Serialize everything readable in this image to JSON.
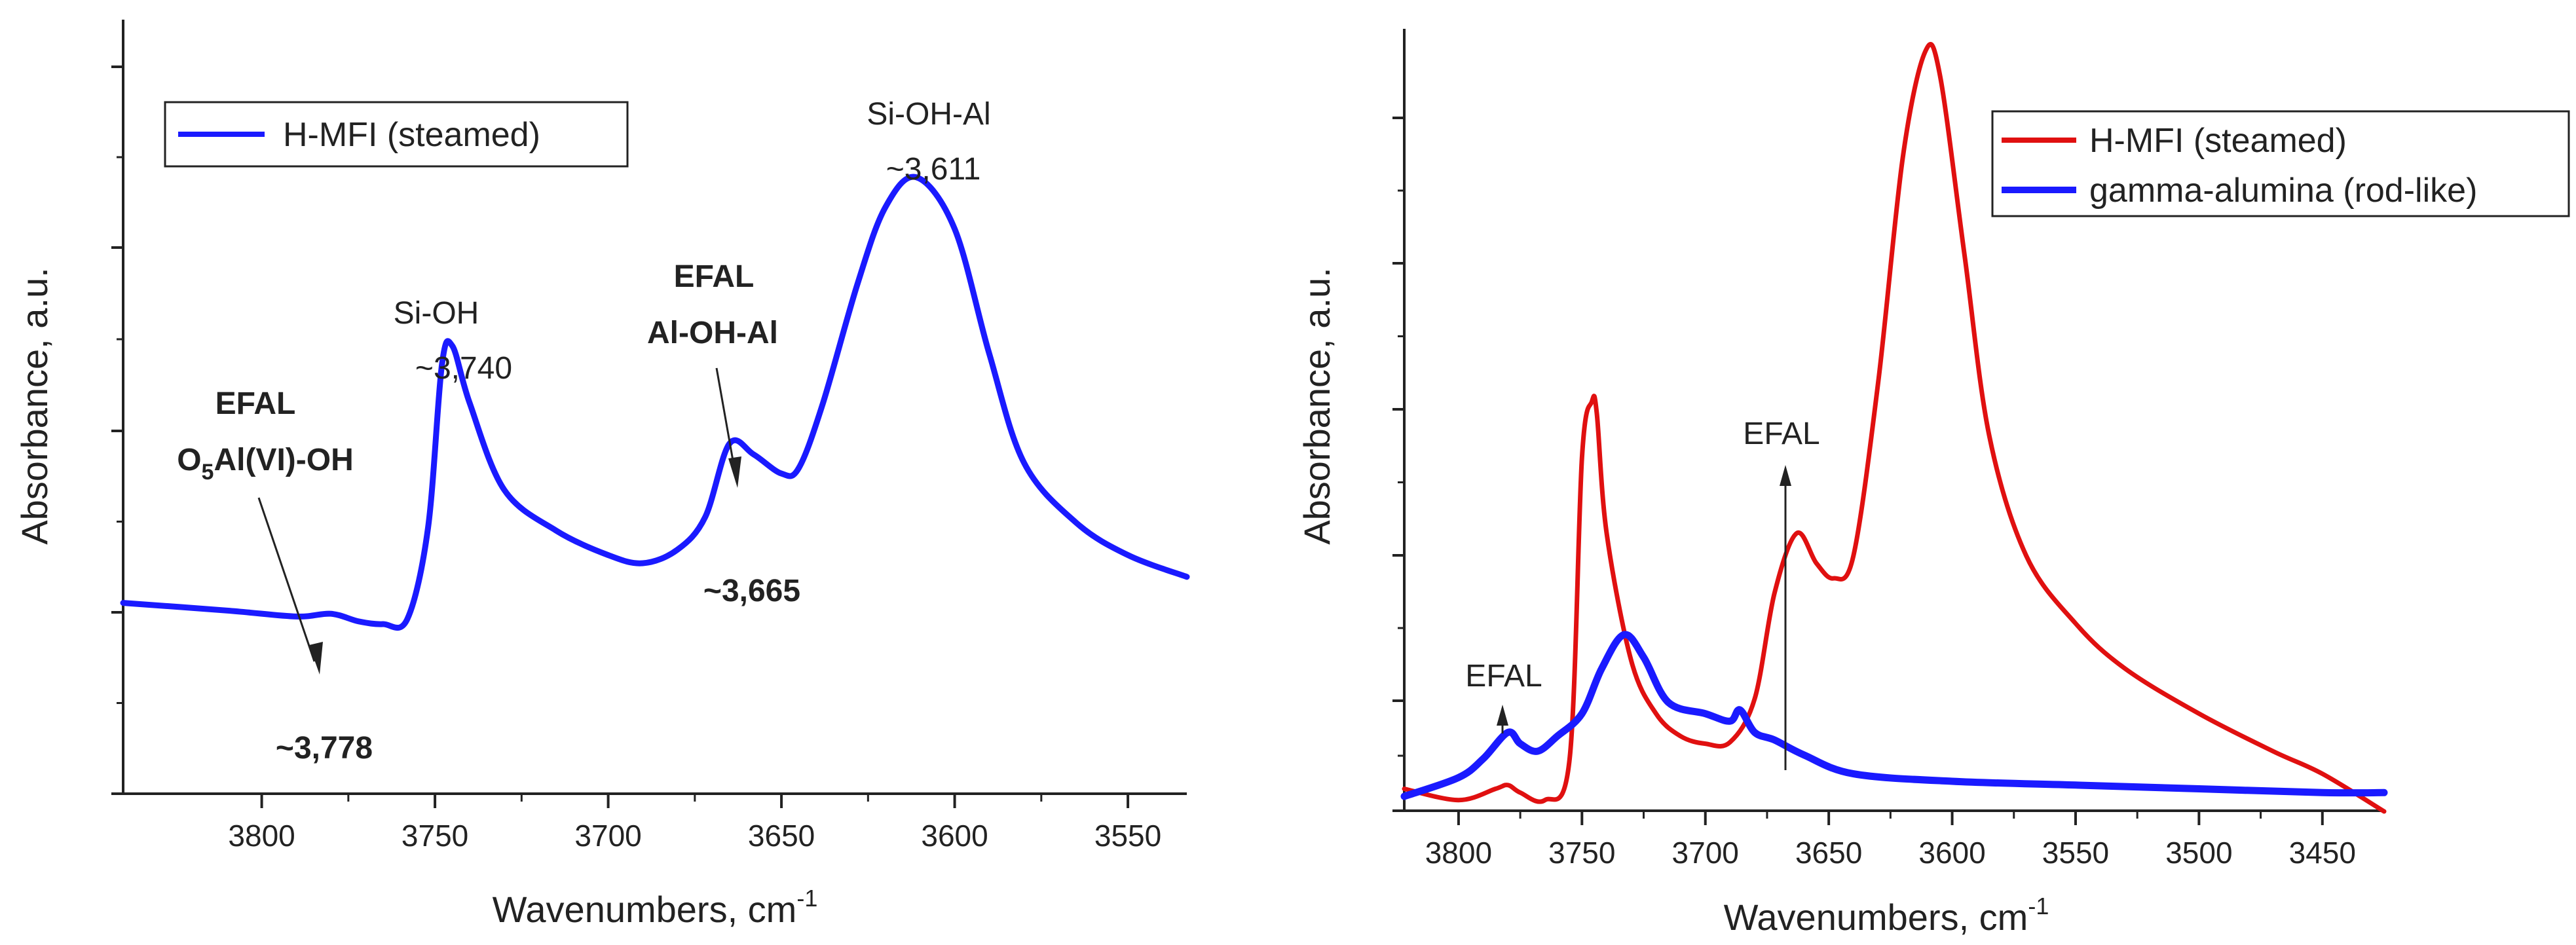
{
  "chart_data": [
    {
      "type": "line",
      "xlabel": "Wavenumbers, cm",
      "xlabel_superscript": "-1",
      "ylabel": "Absorbance, a.u.",
      "xlim": [
        3840,
        3533
      ],
      "ylim": [
        0,
        1
      ],
      "x_ticks": [
        3800,
        3750,
        3700,
        3650,
        3600,
        3550
      ],
      "legend": "top-left",
      "series": [
        {
          "name": "H-MFI (steamed)",
          "color": "#1a1aff",
          "points": [
            [
              3840,
              0.192
            ],
            [
              3810,
              0.178
            ],
            [
              3790,
              0.167
            ],
            [
              3780,
              0.172
            ],
            [
              3772,
              0.158
            ],
            [
              3765,
              0.153
            ],
            [
              3758,
              0.162
            ],
            [
              3752,
              0.33
            ],
            [
              3748,
              0.63
            ],
            [
              3745,
              0.665
            ],
            [
              3740,
              0.56
            ],
            [
              3730,
              0.4
            ],
            [
              3715,
              0.325
            ],
            [
              3700,
              0.28
            ],
            [
              3690,
              0.265
            ],
            [
              3680,
              0.29
            ],
            [
              3672,
              0.35
            ],
            [
              3665,
              0.485
            ],
            [
              3658,
              0.465
            ],
            [
              3650,
              0.43
            ],
            [
              3645,
              0.44
            ],
            [
              3638,
              0.56
            ],
            [
              3628,
              0.78
            ],
            [
              3620,
              0.92
            ],
            [
              3611,
              0.975
            ],
            [
              3600,
              0.88
            ],
            [
              3590,
              0.65
            ],
            [
              3580,
              0.45
            ],
            [
              3565,
              0.34
            ],
            [
              3550,
              0.28
            ],
            [
              3533,
              0.24
            ]
          ]
        }
      ],
      "annotations": [
        {
          "lines": [
            "EFAL",
            "O5Al(VI)-OH"
          ],
          "bold": true
        },
        {
          "lines": [
            "~3,778"
          ],
          "bold": true
        },
        {
          "lines": [
            "Si-OH",
            "~3,740"
          ],
          "bold": false
        },
        {
          "lines": [
            "EFAL",
            "Al-OH-Al"
          ],
          "bold": true
        },
        {
          "lines": [
            "~3,665"
          ],
          "bold": true
        },
        {
          "lines": [
            "Si-OH-Al",
            "~3,611"
          ],
          "bold": false
        }
      ]
    },
    {
      "type": "line",
      "xlabel": "Wavenumbers, cm",
      "xlabel_superscript": "-1",
      "ylabel": "Absorbance, a.u.",
      "xlim": [
        3822,
        3425
      ],
      "ylim": [
        0,
        1
      ],
      "x_ticks": [
        3800,
        3750,
        3700,
        3650,
        3600,
        3550,
        3500,
        3450
      ],
      "legend": "top-right",
      "series": [
        {
          "name": "H-MFI (steamed)",
          "color": "#e01010",
          "points": [
            [
              3822,
              0.01
            ],
            [
              3800,
              -0.005
            ],
            [
              3785,
              0.01
            ],
            [
              3780,
              0.015
            ],
            [
              3775,
              0.005
            ],
            [
              3765,
              -0.005
            ],
            [
              3755,
              0.05
            ],
            [
              3750,
              0.45
            ],
            [
              3746,
              0.525
            ],
            [
              3744,
              0.51
            ],
            [
              3740,
              0.35
            ],
            [
              3730,
              0.18
            ],
            [
              3720,
              0.11
            ],
            [
              3710,
              0.08
            ],
            [
              3700,
              0.07
            ],
            [
              3690,
              0.072
            ],
            [
              3680,
              0.13
            ],
            [
              3672,
              0.27
            ],
            [
              3663,
              0.35
            ],
            [
              3655,
              0.31
            ],
            [
              3648,
              0.29
            ],
            [
              3640,
              0.32
            ],
            [
              3630,
              0.55
            ],
            [
              3620,
              0.85
            ],
            [
              3611,
              0.99
            ],
            [
              3605,
              0.96
            ],
            [
              3595,
              0.72
            ],
            [
              3585,
              0.48
            ],
            [
              3570,
              0.32
            ],
            [
              3550,
              0.23
            ],
            [
              3530,
              0.17
            ],
            [
              3500,
              0.11
            ],
            [
              3470,
              0.06
            ],
            [
              3450,
              0.03
            ],
            [
              3425,
              -0.02
            ]
          ]
        },
        {
          "name": "gamma-alumina (rod-like)",
          "color": "#1a1aff",
          "points": [
            [
              3822,
              0.0
            ],
            [
              3800,
              0.025
            ],
            [
              3790,
              0.05
            ],
            [
              3780,
              0.085
            ],
            [
              3775,
              0.07
            ],
            [
              3768,
              0.06
            ],
            [
              3760,
              0.08
            ],
            [
              3750,
              0.11
            ],
            [
              3742,
              0.17
            ],
            [
              3733,
              0.215
            ],
            [
              3725,
              0.185
            ],
            [
              3715,
              0.125
            ],
            [
              3700,
              0.11
            ],
            [
              3690,
              0.1
            ],
            [
              3686,
              0.115
            ],
            [
              3680,
              0.085
            ],
            [
              3672,
              0.075
            ],
            [
              3660,
              0.055
            ],
            [
              3640,
              0.03
            ],
            [
              3600,
              0.02
            ],
            [
              3550,
              0.015
            ],
            [
              3500,
              0.01
            ],
            [
              3450,
              0.005
            ],
            [
              3425,
              0.005
            ]
          ]
        }
      ],
      "annotations": [
        {
          "lines": [
            "EFAL"
          ],
          "bold": false
        },
        {
          "lines": [
            "EFAL"
          ],
          "bold": false
        }
      ]
    }
  ]
}
